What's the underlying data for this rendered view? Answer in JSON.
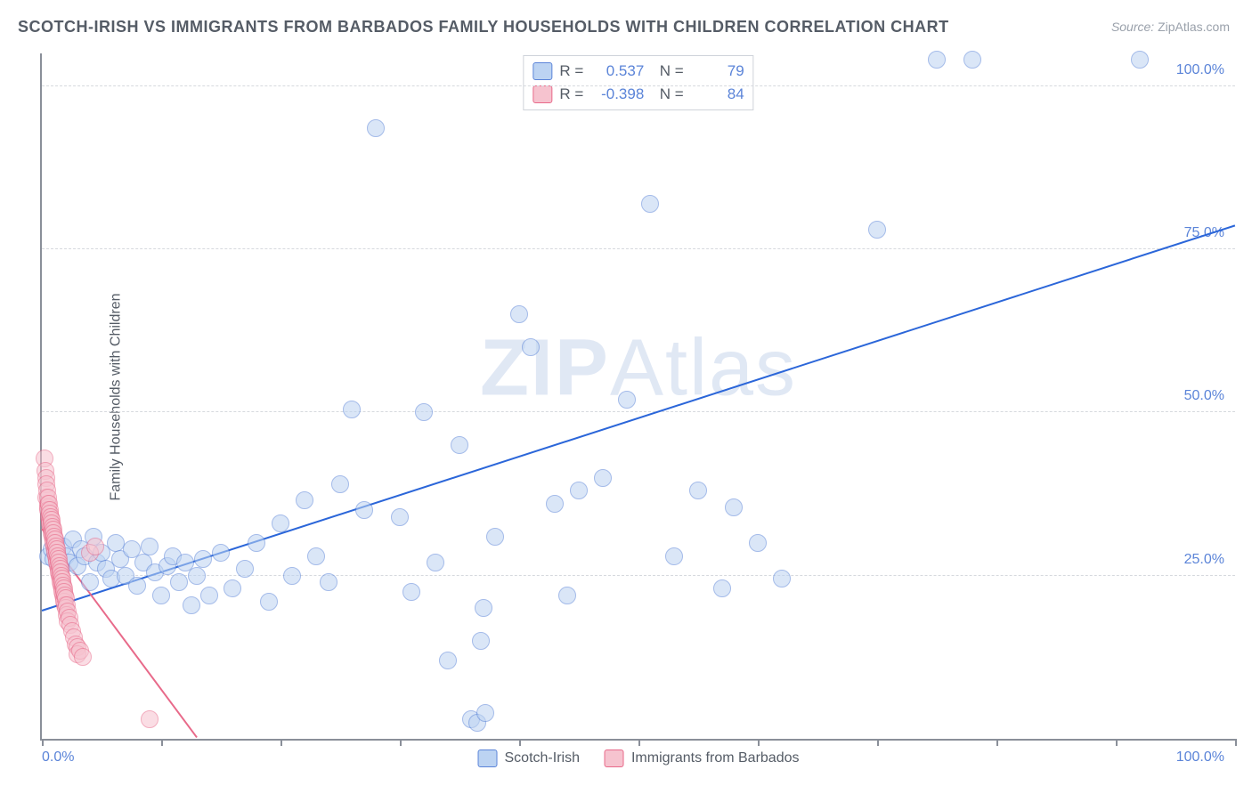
{
  "title": "SCOTCH-IRISH VS IMMIGRANTS FROM BARBADOS FAMILY HOUSEHOLDS WITH CHILDREN CORRELATION CHART",
  "source_label": "Source:",
  "source_value": "ZipAtlas.com",
  "ylabel": "Family Households with Children",
  "watermark_a": "ZIP",
  "watermark_b": "Atlas",
  "chart": {
    "type": "scatter",
    "xlim": [
      0,
      100
    ],
    "ylim": [
      0,
      105
    ],
    "x_tick_positions": [
      0,
      10,
      20,
      30,
      40,
      50,
      60,
      70,
      80,
      90,
      100
    ],
    "x_tick_labels": {
      "left": "0.0%",
      "right": "100.0%"
    },
    "y_gridlines": [
      25,
      50,
      75,
      100
    ],
    "y_tick_labels": [
      "25.0%",
      "50.0%",
      "75.0%",
      "100.0%"
    ],
    "background_color": "#ffffff",
    "grid_color": "#d6d9de",
    "axis_color": "#8a8f99",
    "tick_label_color": "#5b84d8",
    "marker_radius": 9,
    "marker_border_width": 1.2,
    "series": [
      {
        "name": "Scotch-Irish",
        "fill_color": "#bcd3f2",
        "stroke_color": "#5b84d8",
        "fill_opacity": 0.55,
        "trend": {
          "x1": 0,
          "y1": 19.5,
          "x2": 100,
          "y2": 78.5,
          "color": "#2b66d9",
          "width": 2
        },
        "R": "0.537",
        "N": "79",
        "points": [
          [
            0.5,
            28
          ],
          [
            0.8,
            29
          ],
          [
            1.0,
            27.5
          ],
          [
            1.2,
            30
          ],
          [
            1.5,
            26
          ],
          [
            1.8,
            29.5
          ],
          [
            2.0,
            28
          ],
          [
            2.3,
            27
          ],
          [
            2.6,
            30.5
          ],
          [
            3.0,
            26.5
          ],
          [
            3.3,
            29
          ],
          [
            3.6,
            28
          ],
          [
            4.0,
            24
          ],
          [
            4.3,
            31
          ],
          [
            4.6,
            27
          ],
          [
            5.0,
            28.5
          ],
          [
            5.4,
            26
          ],
          [
            5.8,
            24.5
          ],
          [
            6.2,
            30
          ],
          [
            6.6,
            27.5
          ],
          [
            7.0,
            25
          ],
          [
            7.5,
            29
          ],
          [
            8.0,
            23.5
          ],
          [
            8.5,
            27
          ],
          [
            9.0,
            29.5
          ],
          [
            9.5,
            25.5
          ],
          [
            10.0,
            22
          ],
          [
            10.5,
            26.5
          ],
          [
            11.0,
            28
          ],
          [
            11.5,
            24
          ],
          [
            12.0,
            27
          ],
          [
            12.5,
            20.5
          ],
          [
            13.0,
            25
          ],
          [
            13.5,
            27.5
          ],
          [
            14.0,
            22
          ],
          [
            15.0,
            28.5
          ],
          [
            16.0,
            23
          ],
          [
            17.0,
            26
          ],
          [
            18.0,
            30
          ],
          [
            19.0,
            21
          ],
          [
            20.0,
            33
          ],
          [
            21.0,
            25
          ],
          [
            22.0,
            36.5
          ],
          [
            23.0,
            28
          ],
          [
            24.0,
            24
          ],
          [
            25.0,
            39
          ],
          [
            26.0,
            50.5
          ],
          [
            27.0,
            35
          ],
          [
            28.0,
            93.5
          ],
          [
            30.0,
            34
          ],
          [
            31.0,
            22.5
          ],
          [
            32.0,
            50
          ],
          [
            33.0,
            27
          ],
          [
            34.0,
            12
          ],
          [
            35.0,
            45
          ],
          [
            36.0,
            3
          ],
          [
            36.5,
            2.5
          ],
          [
            36.8,
            15
          ],
          [
            37.0,
            20
          ],
          [
            37.2,
            4
          ],
          [
            38.0,
            31
          ],
          [
            40.0,
            65
          ],
          [
            41.0,
            60
          ],
          [
            43.0,
            36
          ],
          [
            44.0,
            22
          ],
          [
            45.0,
            38
          ],
          [
            47.0,
            40
          ],
          [
            49.0,
            52
          ],
          [
            51.0,
            82
          ],
          [
            53.0,
            28
          ],
          [
            55.0,
            38
          ],
          [
            57.0,
            23
          ],
          [
            58.0,
            35.5
          ],
          [
            60.0,
            30
          ],
          [
            62.0,
            24.5
          ],
          [
            70.0,
            78
          ],
          [
            75.0,
            104
          ],
          [
            78.0,
            104
          ],
          [
            92.0,
            104
          ]
        ]
      },
      {
        "name": "Immigrants from Barbados",
        "fill_color": "#f6c3cf",
        "stroke_color": "#e86a8a",
        "fill_opacity": 0.55,
        "trend": {
          "x1": 0,
          "y1": 32,
          "x2": 13,
          "y2": 0,
          "color": "#e86a8a",
          "width": 2
        },
        "R": "-0.398",
        "N": "84",
        "points": [
          [
            0.2,
            43
          ],
          [
            0.3,
            41
          ],
          [
            0.35,
            40
          ],
          [
            0.4,
            39
          ],
          [
            0.4,
            37
          ],
          [
            0.45,
            38
          ],
          [
            0.5,
            36
          ],
          [
            0.5,
            35.5
          ],
          [
            0.55,
            37
          ],
          [
            0.55,
            35
          ],
          [
            0.6,
            36
          ],
          [
            0.6,
            34
          ],
          [
            0.65,
            35
          ],
          [
            0.65,
            33.5
          ],
          [
            0.7,
            34.5
          ],
          [
            0.7,
            33
          ],
          [
            0.75,
            34
          ],
          [
            0.75,
            32.5
          ],
          [
            0.8,
            33.5
          ],
          [
            0.8,
            32
          ],
          [
            0.85,
            33
          ],
          [
            0.85,
            31.5
          ],
          [
            0.9,
            32.5
          ],
          [
            0.9,
            31
          ],
          [
            0.95,
            32
          ],
          [
            0.95,
            30.5
          ],
          [
            1.0,
            31.5
          ],
          [
            1.0,
            30
          ],
          [
            1.05,
            31
          ],
          [
            1.05,
            29.5
          ],
          [
            1.1,
            30.5
          ],
          [
            1.1,
            29
          ],
          [
            1.15,
            30
          ],
          [
            1.15,
            28.5
          ],
          [
            1.2,
            29.5
          ],
          [
            1.2,
            28
          ],
          [
            1.25,
            29
          ],
          [
            1.25,
            27.5
          ],
          [
            1.3,
            28.5
          ],
          [
            1.3,
            27
          ],
          [
            1.35,
            28
          ],
          [
            1.35,
            26.5
          ],
          [
            1.4,
            27.5
          ],
          [
            1.4,
            26
          ],
          [
            1.45,
            27
          ],
          [
            1.45,
            25.5
          ],
          [
            1.5,
            26.5
          ],
          [
            1.5,
            25
          ],
          [
            1.55,
            26
          ],
          [
            1.55,
            24.5
          ],
          [
            1.6,
            25.5
          ],
          [
            1.6,
            24
          ],
          [
            1.65,
            25
          ],
          [
            1.65,
            23.5
          ],
          [
            1.7,
            24.5
          ],
          [
            1.7,
            23
          ],
          [
            1.75,
            24
          ],
          [
            1.75,
            22.5
          ],
          [
            1.8,
            23.5
          ],
          [
            1.8,
            22
          ],
          [
            1.85,
            23
          ],
          [
            1.85,
            21.5
          ],
          [
            1.9,
            22.5
          ],
          [
            1.9,
            21
          ],
          [
            1.95,
            22
          ],
          [
            1.95,
            20.5
          ],
          [
            2.0,
            21.5
          ],
          [
            2.0,
            20
          ],
          [
            2.1,
            20.5
          ],
          [
            2.1,
            19
          ],
          [
            2.2,
            19.5
          ],
          [
            2.2,
            18
          ],
          [
            2.3,
            18.5
          ],
          [
            2.4,
            17.5
          ],
          [
            2.5,
            16.5
          ],
          [
            2.7,
            15.5
          ],
          [
            2.8,
            14.5
          ],
          [
            3.0,
            14
          ],
          [
            3.0,
            13
          ],
          [
            3.2,
            13.5
          ],
          [
            3.4,
            12.5
          ],
          [
            4.0,
            28.5
          ],
          [
            4.5,
            29.5
          ],
          [
            9.0,
            3
          ]
        ]
      }
    ]
  },
  "legend_bottom": [
    {
      "label": "Scotch-Irish",
      "fill": "#bcd3f2",
      "stroke": "#5b84d8"
    },
    {
      "label": "Immigrants from Barbados",
      "fill": "#f6c3cf",
      "stroke": "#e86a8a"
    }
  ]
}
